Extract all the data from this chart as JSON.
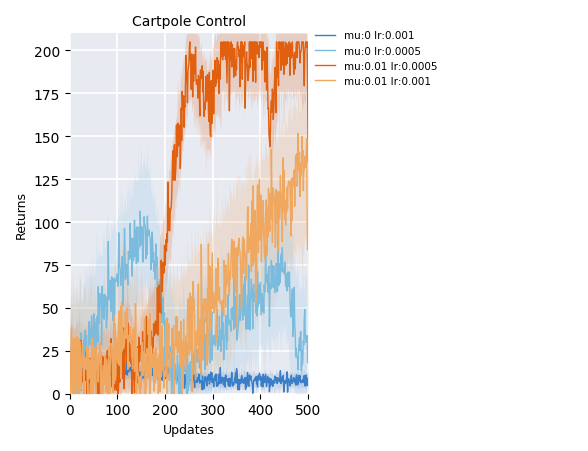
{
  "title": "Cartpole Control",
  "xlabel": "Updates",
  "ylabel": "Returns",
  "xlim": [
    0,
    500
  ],
  "ylim": [
    0,
    210
  ],
  "bg_color": "#e8eaf2",
  "grid_color": "white",
  "legend_entries": [
    {
      "label": "mu:0 lr:0.001",
      "color": "#3a7ec8",
      "fill_color": "#3a7ec8",
      "alpha_fill": 0.18
    },
    {
      "label": "mu:0 lr:0.0005",
      "color": "#7bbcde",
      "fill_color": "#7bbcde",
      "alpha_fill": 0.18
    },
    {
      "label": "mu:0.01 lr:0.0005",
      "color": "#e06010",
      "fill_color": "#e06010",
      "alpha_fill": 0.2
    },
    {
      "label": "mu:0.01 lr:0.001",
      "color": "#f0a860",
      "fill_color": "#f0a860",
      "alpha_fill": 0.22
    }
  ],
  "n_steps": 500,
  "seed": 7
}
